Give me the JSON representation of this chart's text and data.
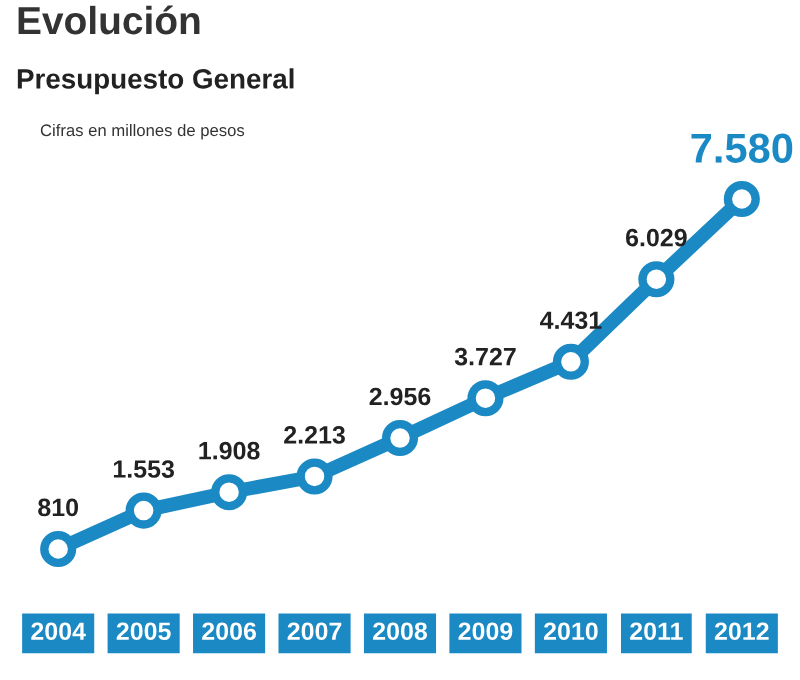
{
  "chart_data": {
    "type": "line",
    "title": "Evolución",
    "subtitle": "Presupuesto General",
    "annotations": [
      "Cifras en millones de pesos"
    ],
    "categories": [
      "2004",
      "2005",
      "2006",
      "2007",
      "2008",
      "2009",
      "2010",
      "2011",
      "2012"
    ],
    "series": [
      {
        "color": "#1b8ac4",
        "values": [
          810,
          1553,
          1908,
          2213,
          2956,
          3727,
          4431,
          6029,
          7580
        ],
        "value_labels": [
          "810",
          "1.553",
          "1.908",
          "2.213",
          "2.956",
          "3.727",
          "4.431",
          "6.029",
          "7.580"
        ]
      }
    ],
    "marker": "circle",
    "line_style": "solid",
    "grid": false,
    "legend": false
  }
}
